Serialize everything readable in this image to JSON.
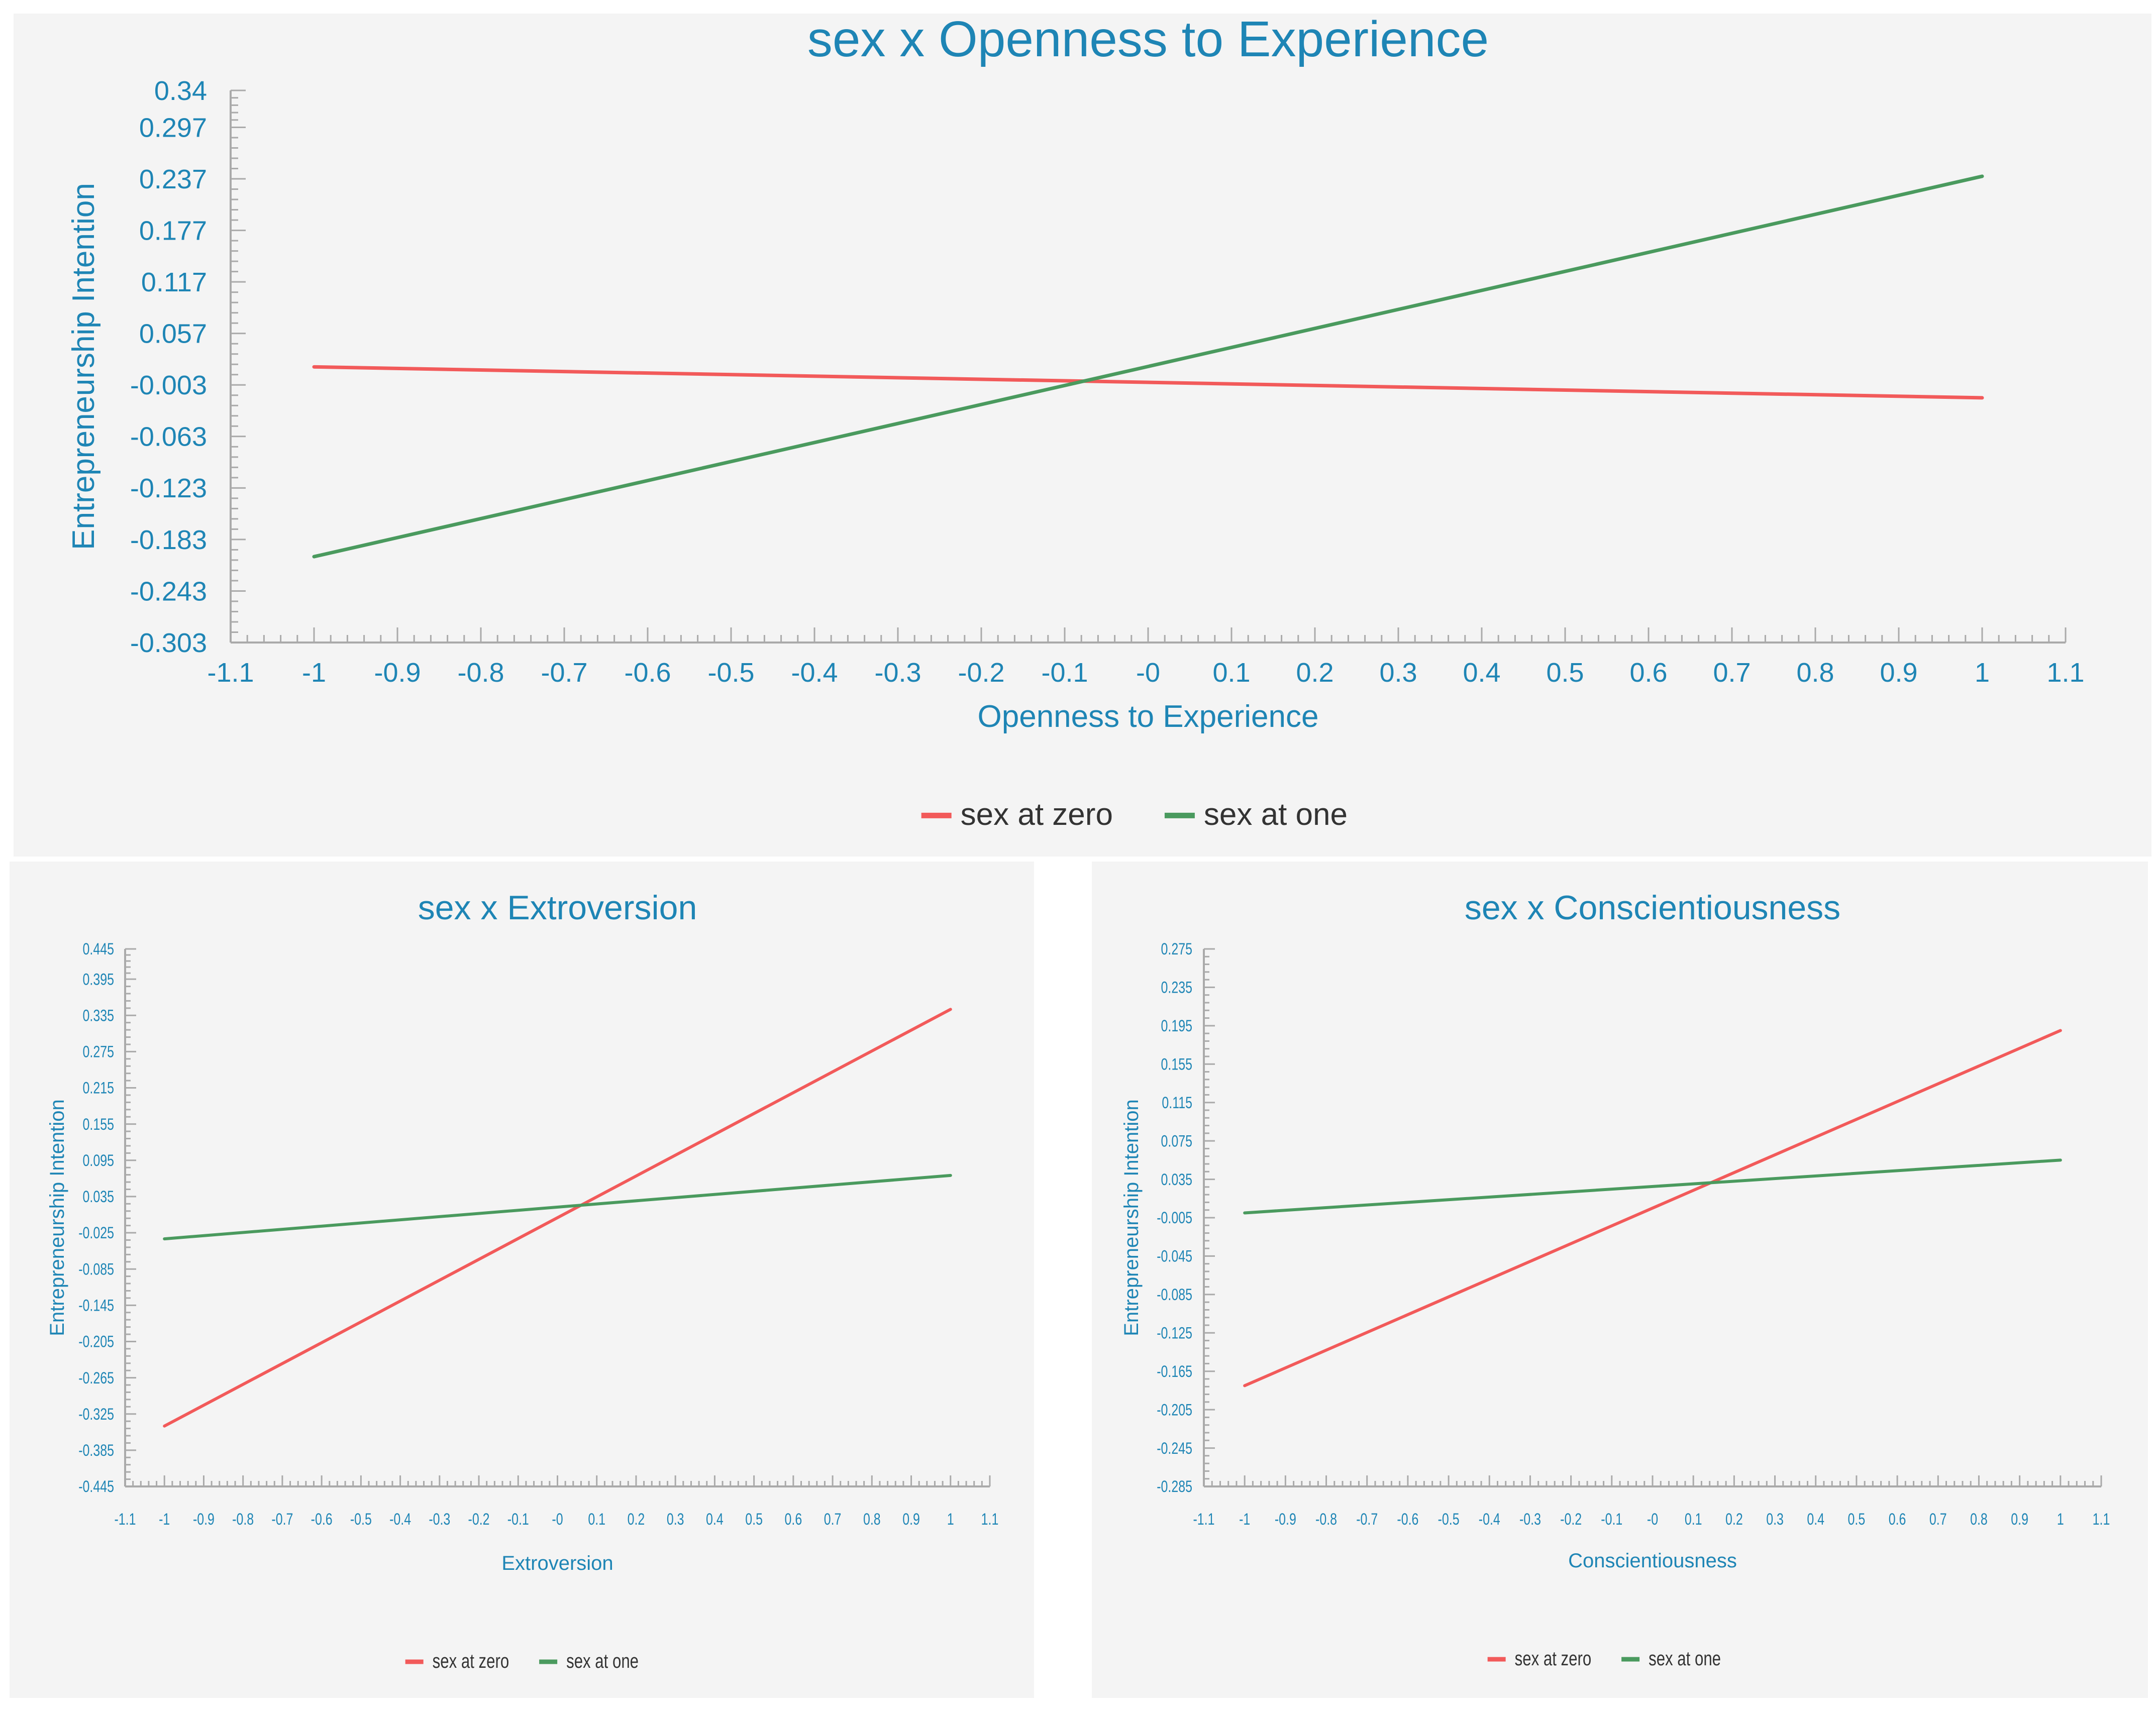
{
  "colors": {
    "series_zero": "#f25a5a",
    "series_one": "#4a9a5e",
    "axis": "#aaaaaa",
    "text": "#1e85b5",
    "panel_bg": "#f4f4f4"
  },
  "chart_data": [
    {
      "id": "openness",
      "type": "line",
      "title": "sex x Openness to Experience",
      "xlabel": "Openness to Experience",
      "ylabel": "Entrepreneurship Intention",
      "xlim": [
        -1.1,
        1.1
      ],
      "ylim": [
        -0.303,
        0.34
      ],
      "x_ticks": [
        -1.1,
        -1,
        -0.9,
        -0.8,
        -0.7,
        -0.6,
        -0.5,
        -0.4,
        -0.3,
        -0.2,
        -0.1,
        0,
        0.1,
        0.2,
        0.3,
        0.4,
        0.5,
        0.6,
        0.7,
        0.8,
        0.9,
        1,
        1.1
      ],
      "x_tick_labels": [
        "-1.1",
        "-1",
        "-0.9",
        "-0.8",
        "-0.7",
        "-0.6",
        "-0.5",
        "-0.4",
        "-0.3",
        "-0.2",
        "-0.1",
        "-0",
        "0.1",
        "0.2",
        "0.3",
        "0.4",
        "0.5",
        "0.6",
        "0.7",
        "0.8",
        "0.9",
        "1",
        "1.1"
      ],
      "y_ticks": [
        0.34,
        0.297,
        0.237,
        0.177,
        0.117,
        0.057,
        -0.003,
        -0.063,
        -0.123,
        -0.183,
        -0.243,
        -0.303
      ],
      "y_tick_labels": [
        "0.34",
        "0.297",
        "0.237",
        "0.177",
        "0.117",
        "0.057",
        "-0.003",
        "-0.063",
        "-0.123",
        "-0.183",
        "-0.243",
        "-0.303"
      ],
      "series": [
        {
          "name": "sex at zero",
          "x": [
            -1,
            1
          ],
          "y": [
            0.018,
            -0.018
          ]
        },
        {
          "name": "sex at one",
          "x": [
            -1,
            1
          ],
          "y": [
            -0.203,
            0.24
          ]
        }
      ],
      "legend": [
        "sex at zero",
        "sex at one"
      ]
    },
    {
      "id": "extroversion",
      "type": "line",
      "title": "sex x Extroversion",
      "xlabel": "Extroversion",
      "ylabel": "Entrepreneurship Intention",
      "xlim": [
        -1.1,
        1.1
      ],
      "ylim": [
        -0.445,
        0.445
      ],
      "x_ticks": [
        -1.1,
        -1,
        -0.9,
        -0.8,
        -0.7,
        -0.6,
        -0.5,
        -0.4,
        -0.3,
        -0.2,
        -0.1,
        0,
        0.1,
        0.2,
        0.3,
        0.4,
        0.5,
        0.6,
        0.7,
        0.8,
        0.9,
        1,
        1.1
      ],
      "x_tick_labels": [
        "-1.1",
        "-1",
        "-0.9",
        "-0.8",
        "-0.7",
        "-0.6",
        "-0.5",
        "-0.4",
        "-0.3",
        "-0.2",
        "-0.1",
        "-0",
        "0.1",
        "0.2",
        "0.3",
        "0.4",
        "0.5",
        "0.6",
        "0.7",
        "0.8",
        "0.9",
        "1",
        "1.1"
      ],
      "y_ticks": [
        0.445,
        0.395,
        0.335,
        0.275,
        0.215,
        0.155,
        0.095,
        0.035,
        -0.025,
        -0.085,
        -0.145,
        -0.205,
        -0.265,
        -0.325,
        -0.385,
        -0.445
      ],
      "y_tick_labels": [
        "0.445",
        "0.395",
        "0.335",
        "0.275",
        "0.215",
        "0.155",
        "0.095",
        "0.035",
        "-0.025",
        "-0.085",
        "-0.145",
        "-0.205",
        "-0.265",
        "-0.325",
        "-0.385",
        "-0.445"
      ],
      "series": [
        {
          "name": "sex at zero",
          "x": [
            -1,
            1
          ],
          "y": [
            -0.345,
            0.345
          ]
        },
        {
          "name": "sex at one",
          "x": [
            -1,
            1
          ],
          "y": [
            -0.035,
            0.07
          ]
        }
      ],
      "legend": [
        "sex at zero",
        "sex at one"
      ]
    },
    {
      "id": "conscientiousness",
      "type": "line",
      "title": "sex x Conscientiousness",
      "xlabel": "Conscientiousness",
      "ylabel": "Entrepreneurship Intention",
      "xlim": [
        -1.1,
        1.1
      ],
      "ylim": [
        -0.285,
        0.275
      ],
      "x_ticks": [
        -1.1,
        -1,
        -0.9,
        -0.8,
        -0.7,
        -0.6,
        -0.5,
        -0.4,
        -0.3,
        -0.2,
        -0.1,
        0,
        0.1,
        0.2,
        0.3,
        0.4,
        0.5,
        0.6,
        0.7,
        0.8,
        0.9,
        1,
        1.1
      ],
      "x_tick_labels": [
        "-1.1",
        "-1",
        "-0.9",
        "-0.8",
        "-0.7",
        "-0.6",
        "-0.5",
        "-0.4",
        "-0.3",
        "-0.2",
        "-0.1",
        "-0",
        "0.1",
        "0.2",
        "0.3",
        "0.4",
        "0.5",
        "0.6",
        "0.7",
        "0.8",
        "0.9",
        "1",
        "1.1"
      ],
      "y_ticks": [
        0.275,
        0.235,
        0.195,
        0.155,
        0.115,
        0.075,
        0.035,
        -0.005,
        -0.045,
        -0.085,
        -0.125,
        -0.165,
        -0.205,
        -0.245,
        -0.285
      ],
      "y_tick_labels": [
        "0.275",
        "0.235",
        "0.195",
        "0.155",
        "0.115",
        "0.075",
        "0.035",
        "-0.005",
        "-0.045",
        "-0.085",
        "-0.125",
        "-0.165",
        "-0.205",
        "-0.245",
        "-0.285"
      ],
      "series": [
        {
          "name": "sex at zero",
          "x": [
            -1,
            1
          ],
          "y": [
            -0.18,
            0.19
          ]
        },
        {
          "name": "sex at one",
          "x": [
            -1,
            1
          ],
          "y": [
            0.0,
            0.055
          ]
        }
      ],
      "legend": [
        "sex at zero",
        "sex at one"
      ]
    }
  ]
}
